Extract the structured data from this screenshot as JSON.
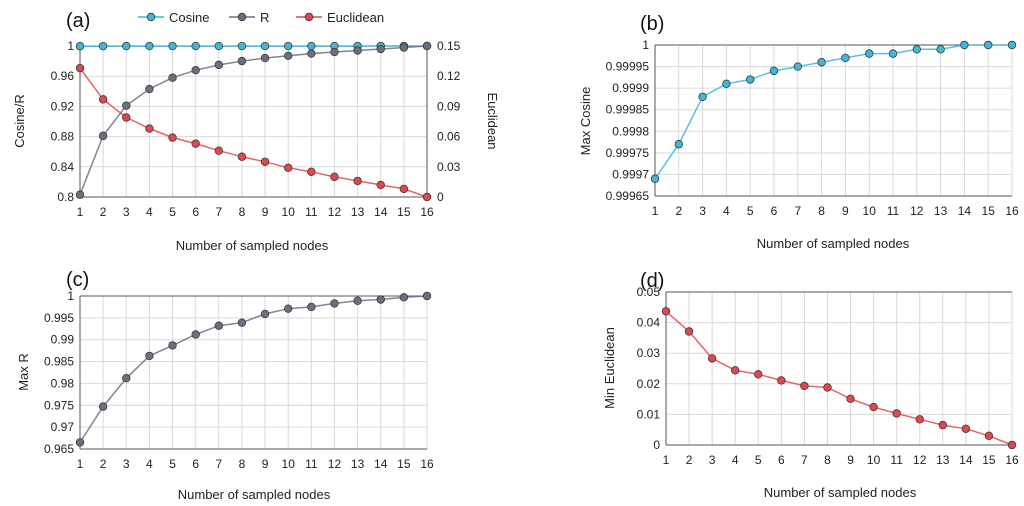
{
  "chart_data": [
    {
      "panel_label": "(a)",
      "type": "line",
      "xlabel": "Number of sampled nodes",
      "ylabel": "Cosine/R",
      "y2label": "Euclidean",
      "x": [
        1,
        2,
        3,
        4,
        5,
        6,
        7,
        8,
        9,
        10,
        11,
        12,
        13,
        14,
        15,
        16
      ],
      "ylim": [
        0.8,
        1.0
      ],
      "yticks": [
        "0.8",
        "0.84",
        "0.88",
        "0.92",
        "0.96",
        "1"
      ],
      "y2lim": [
        0,
        0.15
      ],
      "y2ticks": [
        "0",
        "0.03",
        "0.06",
        "0.09",
        "0.12",
        "0.15"
      ],
      "legend": "top",
      "series": [
        {
          "name": "Cosine",
          "axis": "left",
          "color": "#41b6d6",
          "values": [
            0.9997,
            0.9998,
            0.9999,
            0.9999,
            0.9999,
            0.9999,
            0.9999,
            0.9999,
            0.9999,
            0.9999,
            0.9999,
            0.9999,
            0.9999,
            1.0,
            1.0,
            1.0
          ]
        },
        {
          "name": "R",
          "axis": "left",
          "color": "#6b7080",
          "values": [
            0.803,
            0.881,
            0.921,
            0.943,
            0.958,
            0.968,
            0.975,
            0.98,
            0.984,
            0.987,
            0.99,
            0.992,
            0.994,
            0.996,
            0.998,
            1.0
          ]
        },
        {
          "name": "Euclidean",
          "axis": "right",
          "color": "#e0484d",
          "values": [
            0.128,
            0.097,
            0.079,
            0.068,
            0.059,
            0.053,
            0.046,
            0.04,
            0.035,
            0.029,
            0.025,
            0.02,
            0.016,
            0.012,
            0.008,
            0.0
          ]
        }
      ]
    },
    {
      "panel_label": "(b)",
      "type": "line",
      "xlabel": "Number of sampled nodes",
      "ylabel": "Max Cosine",
      "x": [
        1,
        2,
        3,
        4,
        5,
        6,
        7,
        8,
        9,
        10,
        11,
        12,
        13,
        14,
        15,
        16
      ],
      "ylim": [
        0.99965,
        1.0
      ],
      "yticks": [
        "0.99965",
        "0.9997",
        "0.99975",
        "0.9998",
        "0.99985",
        "0.9999",
        "0.99995",
        "1"
      ],
      "series": [
        {
          "name": "Max Cosine",
          "color": "#41b6d6",
          "values": [
            0.99969,
            0.99977,
            0.99988,
            0.99991,
            0.99992,
            0.99994,
            0.99995,
            0.99996,
            0.99997,
            0.99998,
            0.99998,
            0.99999,
            0.99999,
            1.0,
            1.0,
            1.0
          ]
        }
      ]
    },
    {
      "panel_label": "(c)",
      "type": "line",
      "xlabel": "Number of sampled nodes",
      "ylabel": "Max R",
      "x": [
        1,
        2,
        3,
        4,
        5,
        6,
        7,
        8,
        9,
        10,
        11,
        12,
        13,
        14,
        15,
        16
      ],
      "ylim": [
        0.965,
        1.0
      ],
      "yticks": [
        "0.965",
        "0.97",
        "0.975",
        "0.98",
        "0.985",
        "0.99",
        "0.995",
        "1"
      ],
      "series": [
        {
          "name": "Max R",
          "color": "#6b7080",
          "values": [
            0.9665,
            0.9747,
            0.9812,
            0.9863,
            0.9887,
            0.9912,
            0.9932,
            0.9939,
            0.9959,
            0.9971,
            0.9975,
            0.9983,
            0.9989,
            0.9992,
            0.9997,
            1.0
          ]
        }
      ]
    },
    {
      "panel_label": "(d)",
      "type": "line",
      "xlabel": "Number of  sampled nodes",
      "ylabel": "Min Euclidean",
      "x": [
        1,
        2,
        3,
        4,
        5,
        6,
        7,
        8,
        9,
        10,
        11,
        12,
        13,
        14,
        15,
        16
      ],
      "ylim": [
        0,
        0.05
      ],
      "yticks": [
        "0",
        "0.01",
        "0.02",
        "0.03",
        "0.04",
        "0.05"
      ],
      "series": [
        {
          "name": "Min Euclidean",
          "color": "#e0484d",
          "values": [
            0.0437,
            0.0371,
            0.0283,
            0.0244,
            0.0231,
            0.0211,
            0.0193,
            0.0188,
            0.0151,
            0.0124,
            0.0103,
            0.0084,
            0.0065,
            0.0053,
            0.003,
            0.0
          ]
        }
      ]
    }
  ]
}
